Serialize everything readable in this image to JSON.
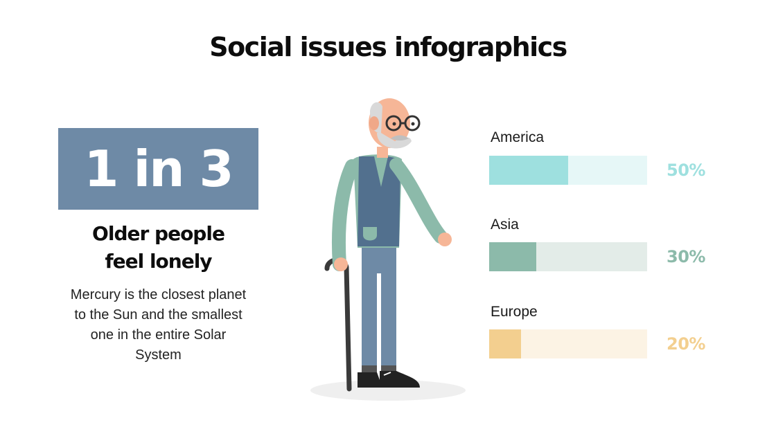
{
  "title": "Social issues infographics",
  "stat": {
    "value": "1 in 3",
    "headline_line1": "Older people",
    "headline_line2": "feel lonely",
    "description": "Mercury is the closest planet to the Sun and the smallest one in the entire Solar System",
    "box_color": "#6e8aa6"
  },
  "illustration": {
    "subject": "elderly man with walking cane",
    "icon": "elderly-man-icon"
  },
  "chart_data": {
    "type": "bar",
    "categories": [
      "America",
      "Asia",
      "Europe"
    ],
    "values": [
      50,
      30,
      20
    ],
    "value_labels": [
      "50%",
      "30%",
      "20%"
    ],
    "colors": [
      "#9ee0df",
      "#8cbaaa",
      "#f3cf8f"
    ],
    "track_colors": [
      "#e6f7f7",
      "#e3ece8",
      "#fcf3e4"
    ],
    "title": "",
    "xlabel": "",
    "ylabel": ""
  }
}
